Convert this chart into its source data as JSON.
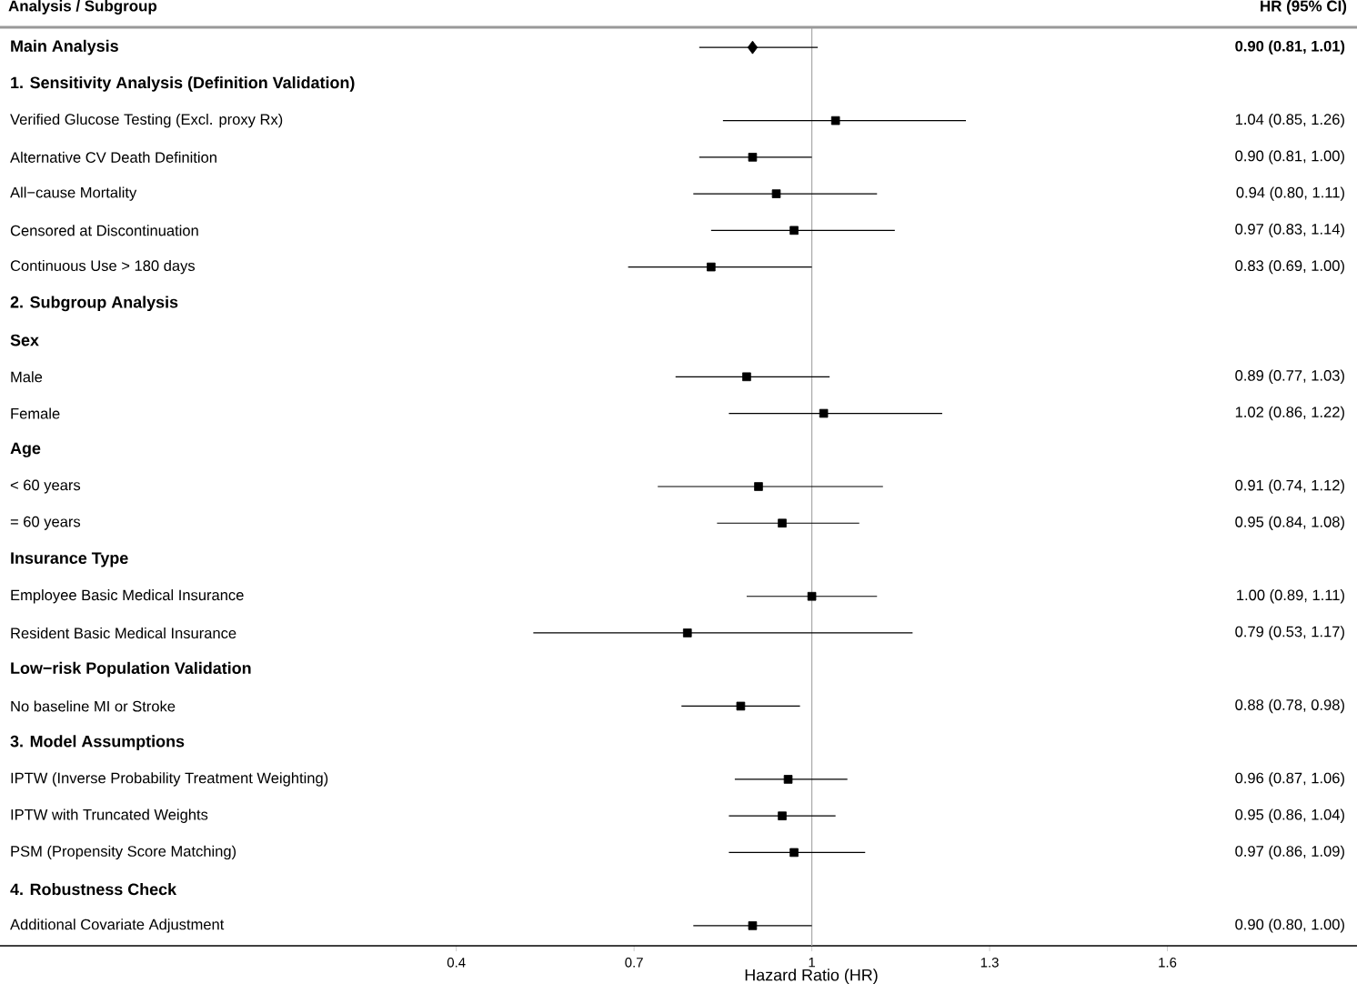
{
  "chart_data": {
    "type": "scatter",
    "orientation": "horizontal",
    "ylabel": "Analysis / Subgroup",
    "xlabel": "Hazard Ratio (HR)",
    "annotations": [
      "HR (95% CI)"
    ],
    "categories": [
      "Main Analysis",
      "1. Sensitivity Analysis (Definition Validation)",
      "Verified Glucose Testing (Excl. proxy Rx)",
      "Alternative CV Death Definition",
      "All−cause Mortality",
      "Censored at Discontinuation",
      "Continuous Use > 180 days",
      "2. Subgroup Analysis",
      "Sex",
      "Male",
      "Female",
      "Age",
      "< 60 years",
      "= 60 years",
      "Insurance Type",
      "Employee Basic Medical Insurance",
      "Resident Basic Medical Insurance",
      "Low−risk Population Validation",
      "No baseline MI or Stroke",
      "3. Model Assumptions",
      "IPTW (Inverse Probability Treatment Weighting)",
      "IPTW with Truncated Weights",
      "PSM (Propensity Score Matching)",
      "4. Robustness Check",
      "Additional Covariate Adjustment"
    ],
    "series": [
      {
        "marker": "diamond",
        "color": "#000000",
        "values": [
          0.9,
          null,
          null,
          null,
          null,
          null,
          null,
          null,
          null,
          null,
          null,
          null,
          null,
          null,
          null,
          null,
          null,
          null,
          null,
          null,
          null,
          null,
          null,
          null,
          null
        ],
        "errors": [
          [
            0.81,
            1.01
          ],
          null,
          null,
          null,
          null,
          null,
          null,
          null,
          null,
          null,
          null,
          null,
          null,
          null,
          null,
          null,
          null,
          null,
          null,
          null,
          null,
          null,
          null,
          null,
          null
        ]
      },
      {
        "marker": "square",
        "color": "#000000",
        "values": [
          null,
          null,
          1.04,
          0.9,
          0.94,
          0.97,
          0.83,
          null,
          null,
          0.89,
          1.02,
          null,
          0.91,
          0.95,
          null,
          1.0,
          0.79,
          null,
          0.88,
          null,
          0.96,
          0.95,
          0.97,
          null,
          0.9
        ],
        "errors": [
          null,
          null,
          [
            0.85,
            1.26
          ],
          [
            0.81,
            1.0
          ],
          [
            0.8,
            1.11
          ],
          [
            0.83,
            1.14
          ],
          [
            0.69,
            1.0
          ],
          null,
          null,
          [
            0.77,
            1.03
          ],
          [
            0.86,
            1.22
          ],
          null,
          [
            0.74,
            1.12
          ],
          [
            0.84,
            1.08
          ],
          null,
          [
            0.89,
            1.11
          ],
          [
            0.53,
            1.17
          ],
          null,
          [
            0.78,
            0.98
          ],
          null,
          [
            0.87,
            1.06
          ],
          [
            0.86,
            1.04
          ],
          [
            0.86,
            1.09
          ],
          null,
          [
            0.8,
            1.0
          ]
        ]
      }
    ],
    "value_labels": [
      "**0.90 (0.81, 1.01)**",
      null,
      "1.04 (0.85, 1.26)",
      "0.90 (0.81, 1.00)",
      "0.94 (0.80, 1.11)",
      "0.97 (0.83, 1.14)",
      "0.83 (0.69, 1.00)",
      null,
      null,
      "0.89 (0.77, 1.03)",
      "1.02 (0.86, 1.22)",
      null,
      "0.91 (0.74, 1.12)",
      "0.95 (0.84, 1.08)",
      null,
      "1.00 (0.89, 1.11)",
      "0.79 (0.53, 1.17)",
      null,
      "0.88 (0.78, 0.98)",
      null,
      "0.96 (0.87, 1.06)",
      "0.95 (0.86, 1.04)",
      "0.97 (0.86, 1.09)",
      null,
      "0.90 (0.80, 1.00)"
    ],
    "ref_lines": [
      {
        "axis": "x",
        "value": 1,
        "color": "#aaaaaa"
      }
    ],
    "xlim": [
      -0.37,
      1.92
    ],
    "xticks": [
      0.4,
      0.7,
      1,
      1.3,
      1.6
    ]
  }
}
